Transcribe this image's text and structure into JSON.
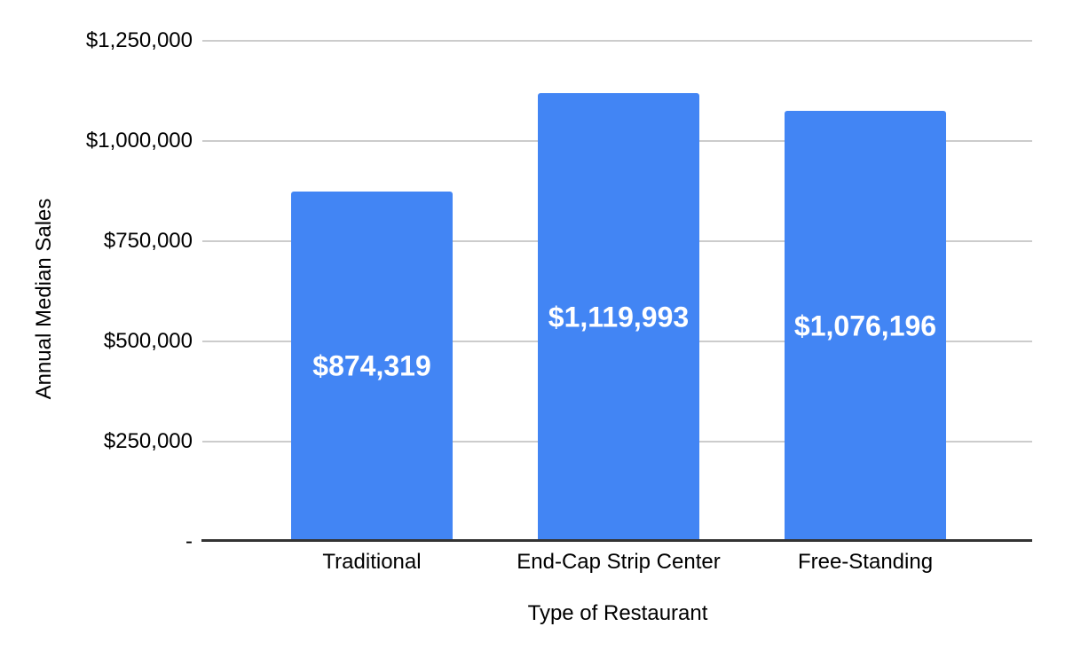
{
  "chart_data": {
    "type": "bar",
    "title": "",
    "categories": [
      "Traditional",
      "End-Cap Strip Center",
      "Free-Standing"
    ],
    "values": [
      874319,
      1119993,
      1076196
    ],
    "data_labels": [
      "$874,319",
      "$1,119,993",
      "$1,076,196"
    ],
    "xlabel": "Type of Restaurant",
    "ylabel": "Annual Median Sales",
    "ylim": [
      0,
      1250000
    ],
    "yticks": [
      {
        "value": 1250000,
        "label": "$1,250,000"
      },
      {
        "value": 1000000,
        "label": "$1,000,000"
      },
      {
        "value": 750000,
        "label": "$750,000"
      },
      {
        "value": 500000,
        "label": "$500,000"
      },
      {
        "value": 250000,
        "label": "$250,000"
      },
      {
        "value": 0,
        "label": "-"
      }
    ],
    "grid": true,
    "legend_position": "none",
    "colors": {
      "bar": "#4285f4",
      "gridline": "#cccccc",
      "axis_line": "#333333",
      "label_text": "#000000",
      "data_label_text": "#ffffff",
      "background": "#ffffff"
    }
  }
}
